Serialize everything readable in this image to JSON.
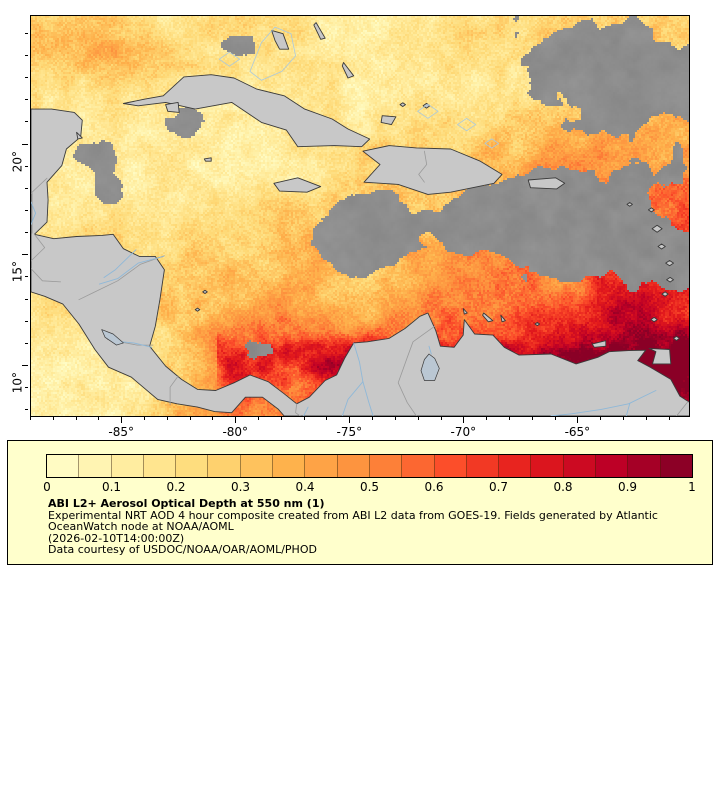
{
  "page": {
    "background": "#ffffff"
  },
  "map": {
    "extent": {
      "lon_min": -89,
      "lon_max": -60.15,
      "lat_min": 7.75,
      "lat_max": 25.8
    },
    "x_ticks": [
      {
        "label": "-85°",
        "value": -85
      },
      {
        "label": "-80°",
        "value": -80
      },
      {
        "label": "-75°",
        "value": -75
      },
      {
        "label": "-70°",
        "value": -70
      },
      {
        "label": "-65°",
        "value": -65
      }
    ],
    "y_ticks": [
      {
        "label": "20°",
        "value": 20
      },
      {
        "label": "15°",
        "value": 15
      },
      {
        "label": "10°",
        "value": 10
      }
    ],
    "no_data_color": "#8e8e8e",
    "land_color": "#c8c8c8",
    "coast_color": "#3a3a3a",
    "border_color": "#9a9a9a",
    "river_color": "#8fb8d8",
    "bank_color": "#a9c9e0",
    "lake_color": "#bac7d3",
    "frame_color": "#000000"
  },
  "colormap": {
    "name": "YlOrRd",
    "min": 0,
    "max": 1,
    "stops": [
      "#ffffcc",
      "#ffeda0",
      "#fed976",
      "#feb24c",
      "#fd8d3c",
      "#fc4e2a",
      "#e31a1c",
      "#bd0026",
      "#800026"
    ]
  },
  "legend": {
    "background": "#ffffcc",
    "ticks": [
      "0",
      "0.1",
      "0.2",
      "0.3",
      "0.4",
      "0.5",
      "0.6",
      "0.7",
      "0.8",
      "0.9",
      "1"
    ],
    "title": "ABI L2+ Aerosol Optical Depth at 550 nm (1)",
    "description_line1": "Experimental NRT AOD 4 hour composite created from ABI L2 data from GOES-19. Fields generated by Atlantic",
    "description_line2": "OceanWatch node at NOAA/AOML",
    "timestamp": "(2026-02-10T14:00:00Z)",
    "credit": "Data courtesy of USDOC/NOAA/OAR/AOML/PHOD"
  }
}
